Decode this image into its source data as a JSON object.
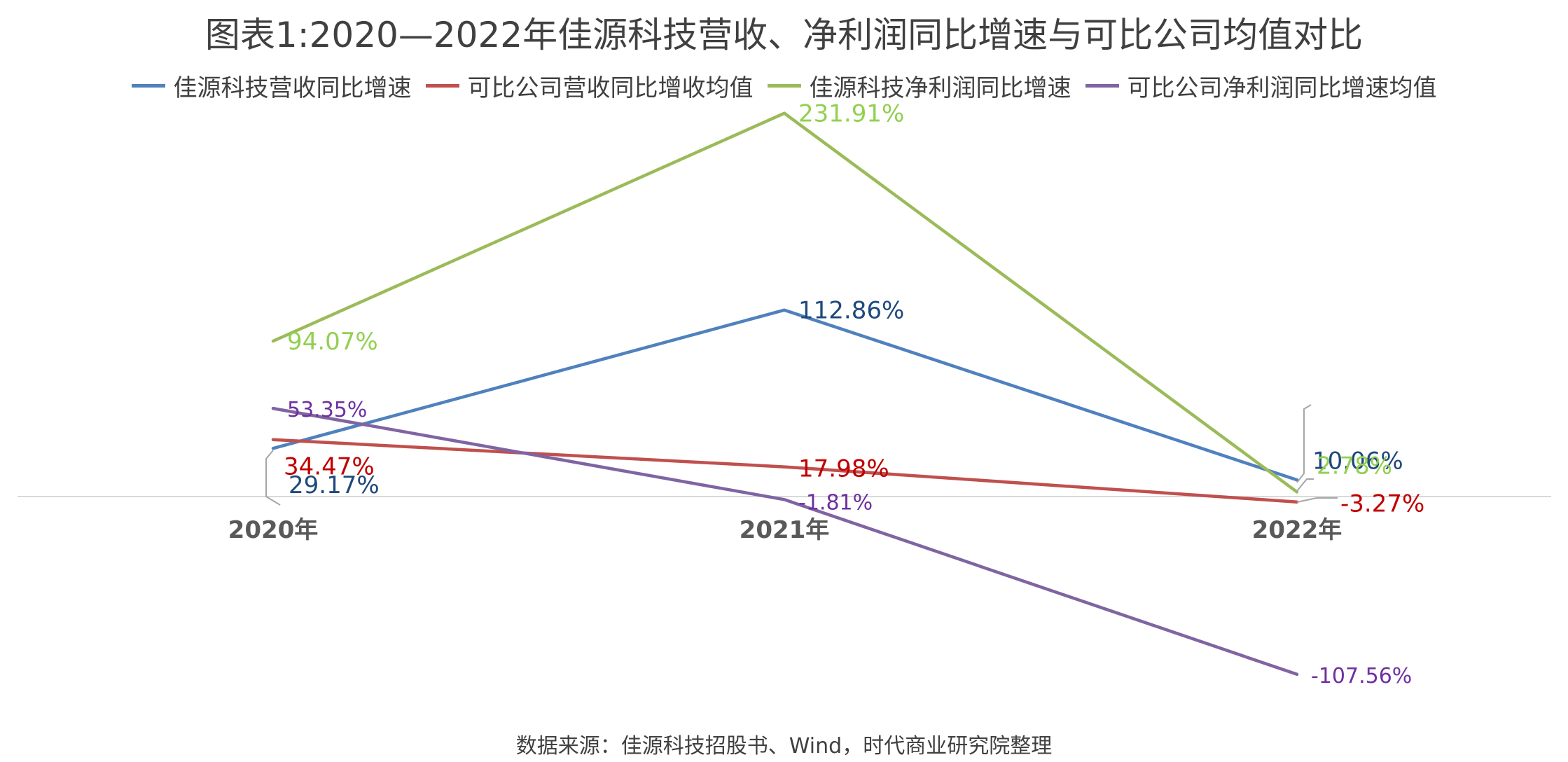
{
  "title": "图表1:2020—2022年佳源科技营收、净利润同比增速与可比公司均值对比",
  "source_note": "数据来源：佳源科技招股书、Wind，时代商业研究院整理",
  "chart_data": {
    "type": "line",
    "categories": [
      "2020年",
      "2021年",
      "2022年"
    ],
    "ylim": [
      -120,
      240
    ],
    "grid": false,
    "legend_position": "top",
    "series": [
      {
        "name": "佳源科技营收同比增速",
        "color": "#4f81bd",
        "label_color": "#1f497d",
        "values": [
          29.17,
          112.86,
          10.06
        ],
        "labels": [
          "29.17%",
          "112.86%",
          "10.06%"
        ]
      },
      {
        "name": "可比公司营收同比增收均值",
        "color": "#c0504d",
        "label_color": "#c00000",
        "values": [
          34.47,
          17.98,
          -3.27
        ],
        "labels": [
          "34.47%",
          "17.98%",
          "-3.27%"
        ]
      },
      {
        "name": "佳源科技净利润同比增速",
        "color": "#9bbb59",
        "label_color": "#92d050",
        "values": [
          94.07,
          231.91,
          2.78
        ],
        "labels": [
          "94.07%",
          "231.91%",
          "2.78%"
        ]
      },
      {
        "name": "可比公司净利润同比增速均值",
        "color": "#8064a2",
        "label_color": "#7030a0",
        "values": [
          53.35,
          -1.81,
          -107.56
        ],
        "labels": [
          "53.35%",
          "-1.81%",
          "-107.56%"
        ]
      }
    ]
  }
}
